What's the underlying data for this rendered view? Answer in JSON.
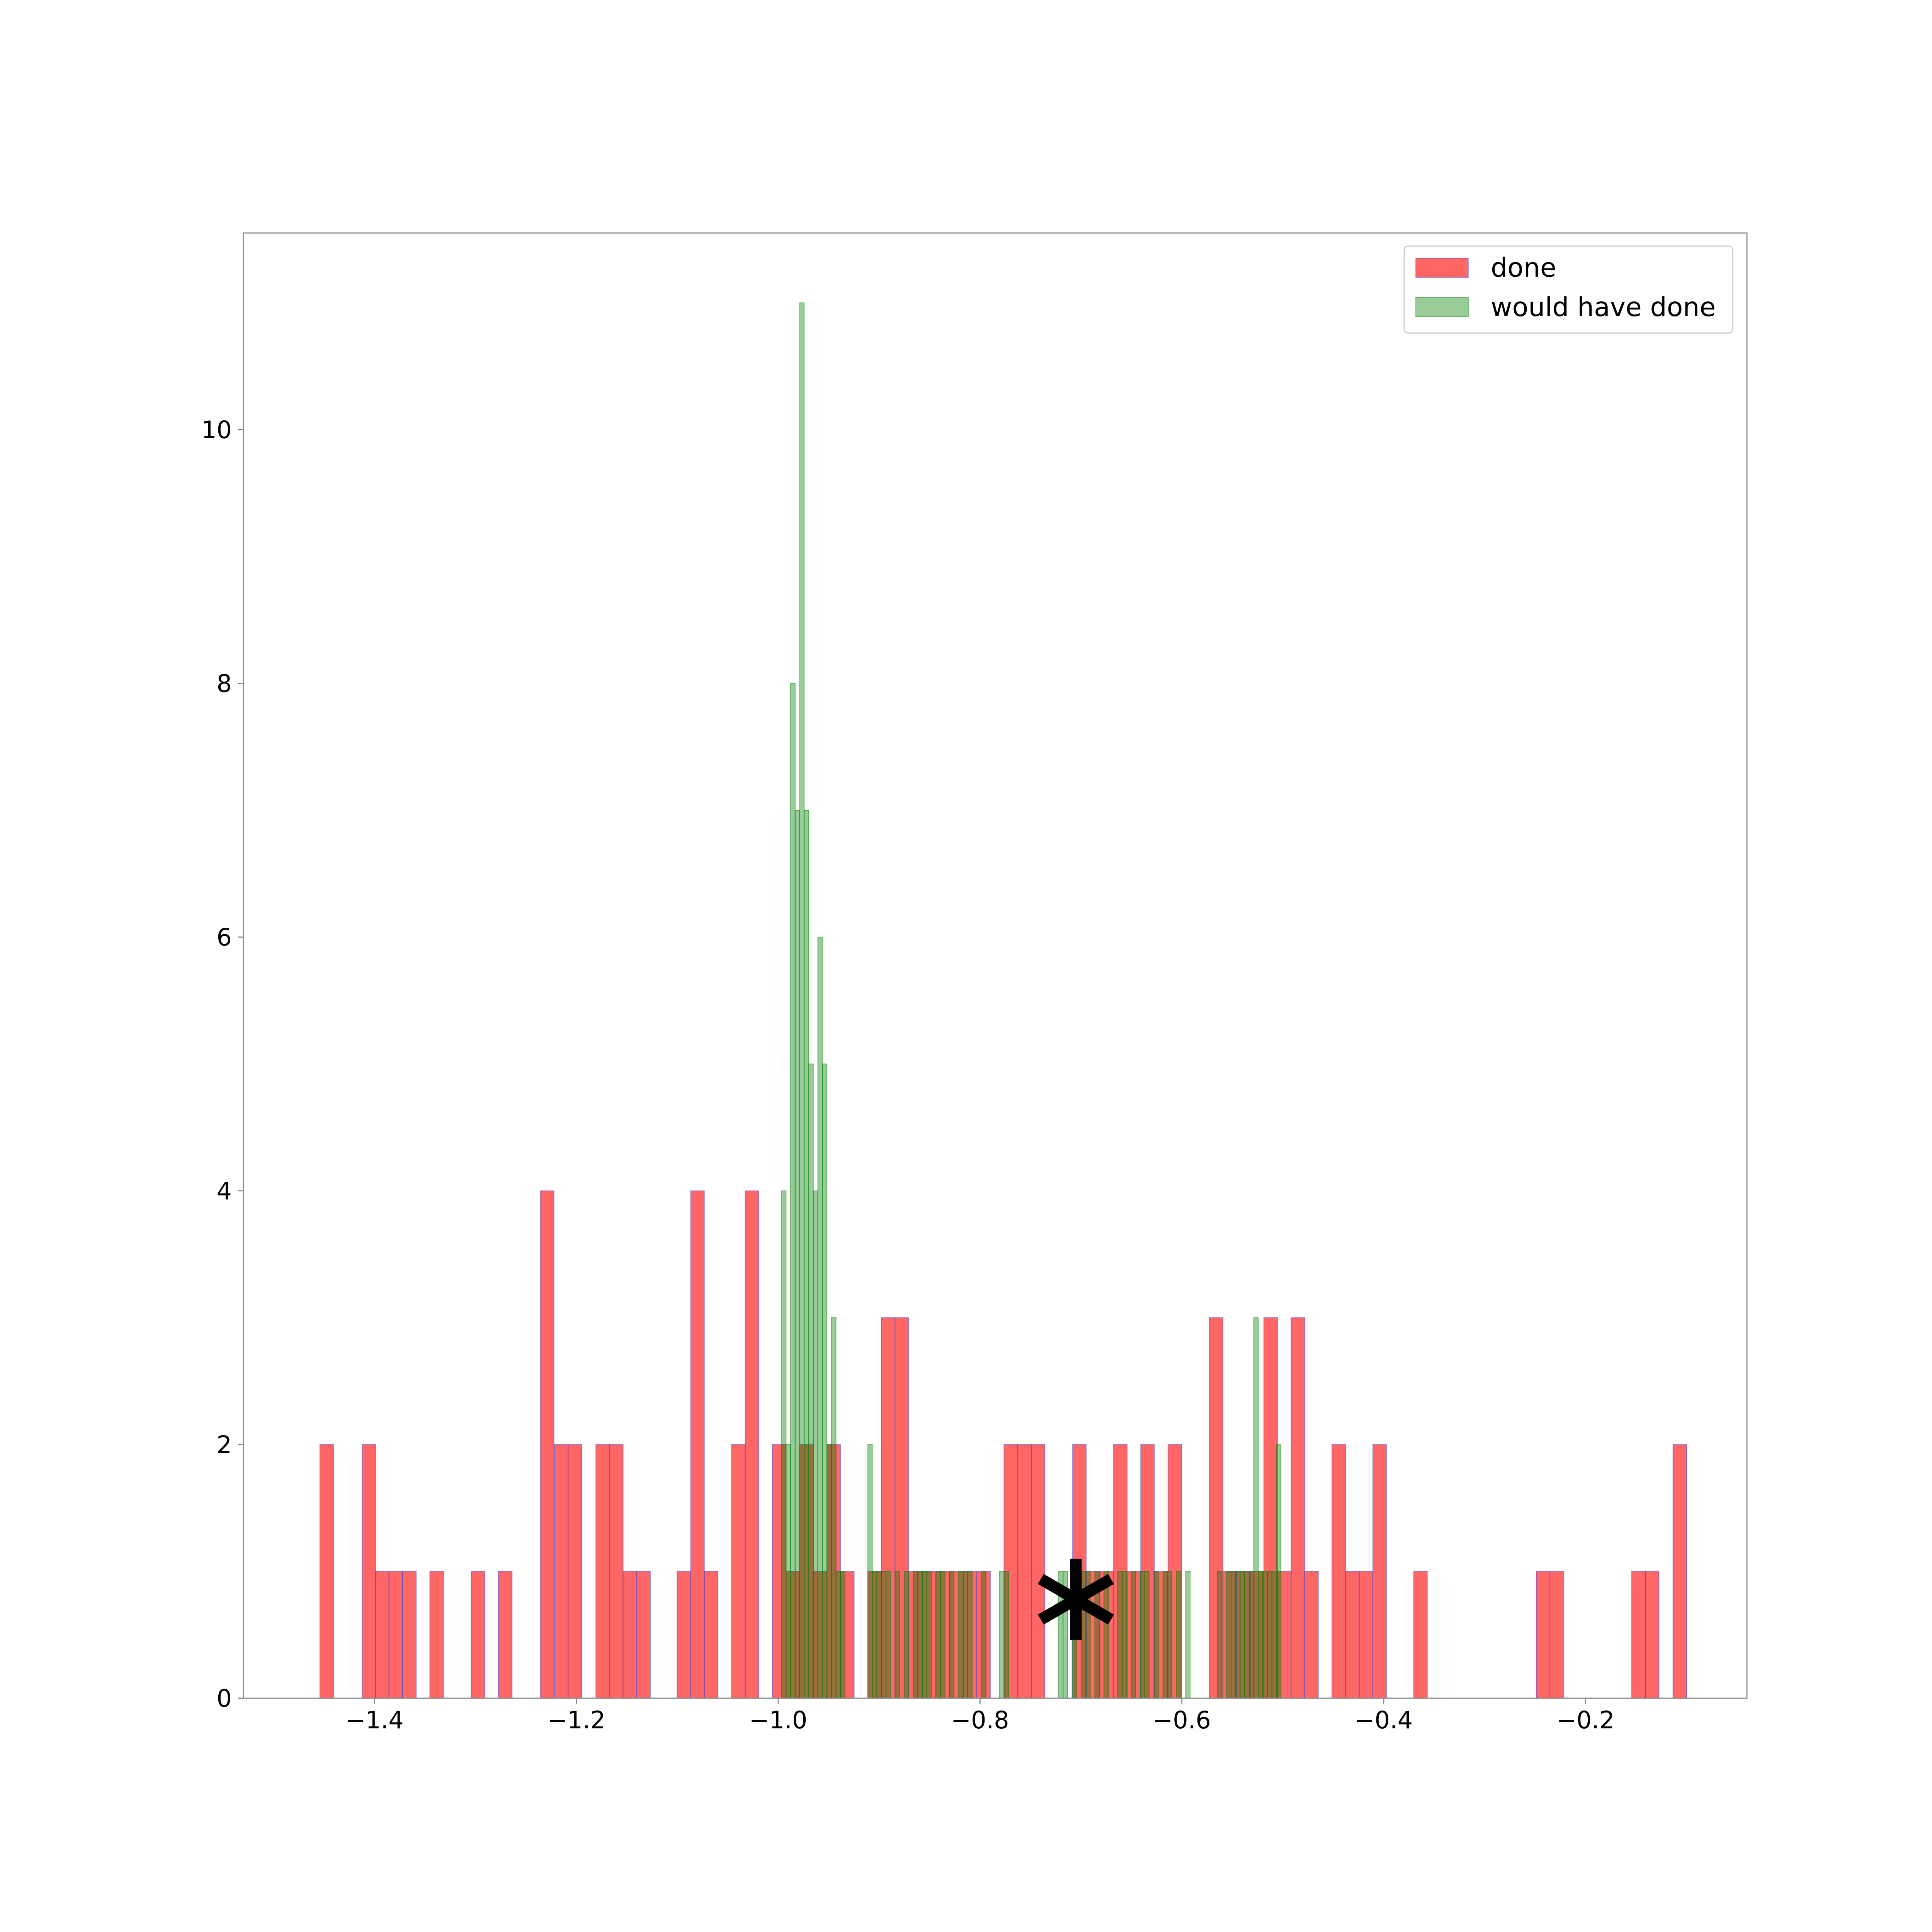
{
  "chart_data": {
    "type": "bar",
    "title": "",
    "xlabel": "",
    "ylabel": "",
    "xlim": [
      -1.53,
      -0.04
    ],
    "ylim": [
      0,
      11.55
    ],
    "x_ticks": [
      -1.4,
      -1.2,
      -1.0,
      -0.8,
      -0.6,
      -0.4,
      -0.2
    ],
    "x_tick_labels": [
      "−1.4",
      "−1.2",
      "−1.0",
      "−0.8",
      "−0.6",
      "−0.4",
      "−0.2"
    ],
    "y_ticks": [
      0,
      2,
      4,
      6,
      8,
      10
    ],
    "y_tick_labels": [
      "0",
      "2",
      "4",
      "6",
      "8",
      "10"
    ],
    "grid": false,
    "legend_position": "top-right",
    "bin_width": 0.0135,
    "series": [
      {
        "name": "done",
        "color": "#ff0000",
        "opacity": 0.6,
        "edge_color": "#4b4bd6",
        "bins": [
          [
            -1.4475,
            2
          ],
          [
            -1.4055,
            2
          ],
          [
            -1.3925,
            1
          ],
          [
            -1.379,
            1
          ],
          [
            -1.3655,
            1
          ],
          [
            -1.3385,
            1
          ],
          [
            -1.2975,
            1
          ],
          [
            -1.2705,
            1
          ],
          [
            -1.229,
            4
          ],
          [
            -1.215,
            2
          ],
          [
            -1.2015,
            2
          ],
          [
            -1.174,
            2
          ],
          [
            -1.1605,
            2
          ],
          [
            -1.147,
            1
          ],
          [
            -1.1335,
            1
          ],
          [
            -1.0935,
            1
          ],
          [
            -1.08,
            4
          ],
          [
            -1.0665,
            1
          ],
          [
            -1.0395,
            2
          ],
          [
            -1.026,
            4
          ],
          [
            -0.999,
            2
          ],
          [
            -0.9855,
            1
          ],
          [
            -0.972,
            2
          ],
          [
            -0.9585,
            1
          ],
          [
            -0.945,
            2
          ],
          [
            -0.9315,
            1
          ],
          [
            -0.9045,
            1
          ],
          [
            -0.891,
            3
          ],
          [
            -0.8775,
            3
          ],
          [
            -0.864,
            1
          ],
          [
            -0.8505,
            1
          ],
          [
            -0.837,
            1
          ],
          [
            -0.8235,
            1
          ],
          [
            -0.81,
            1
          ],
          [
            -0.7965,
            1
          ],
          [
            -0.7695,
            2
          ],
          [
            -0.756,
            2
          ],
          [
            -0.7425,
            2
          ],
          [
            -0.7015,
            2
          ],
          [
            -0.688,
            1
          ],
          [
            -0.6745,
            1
          ],
          [
            -0.661,
            2
          ],
          [
            -0.6475,
            1
          ],
          [
            -0.634,
            2
          ],
          [
            -0.6205,
            1
          ],
          [
            -0.607,
            2
          ],
          [
            -0.566,
            3
          ],
          [
            -0.5525,
            1
          ],
          [
            -0.539,
            1
          ],
          [
            -0.5255,
            1
          ],
          [
            -0.512,
            3
          ],
          [
            -0.4985,
            1
          ],
          [
            -0.485,
            3
          ],
          [
            -0.4715,
            1
          ],
          [
            -0.4445,
            2
          ],
          [
            -0.431,
            1
          ],
          [
            -0.4175,
            1
          ],
          [
            -0.404,
            2
          ],
          [
            -0.3635,
            1
          ],
          [
            -0.242,
            1
          ],
          [
            -0.2285,
            1
          ],
          [
            -0.1475,
            1
          ],
          [
            -0.134,
            1
          ],
          [
            -0.1065,
            2
          ]
        ]
      },
      {
        "name": "would have done",
        "color": "#008000",
        "opacity": 0.4,
        "edge_color": "#008000",
        "bar_width": 0.0045,
        "bins": [
          [
            -0.9945,
            4
          ],
          [
            -0.99,
            2
          ],
          [
            -0.9855,
            8
          ],
          [
            -0.981,
            7
          ],
          [
            -0.9765,
            11
          ],
          [
            -0.972,
            7
          ],
          [
            -0.9675,
            5
          ],
          [
            -0.963,
            4
          ],
          [
            -0.9585,
            6
          ],
          [
            -0.954,
            5
          ],
          [
            -0.9495,
            2
          ],
          [
            -0.945,
            3
          ],
          [
            -0.9405,
            1
          ],
          [
            -0.936,
            1
          ],
          [
            -0.909,
            2
          ],
          [
            -0.9045,
            1
          ],
          [
            -0.9,
            1
          ],
          [
            -0.8955,
            1
          ],
          [
            -0.891,
            1
          ],
          [
            -0.882,
            1
          ],
          [
            -0.873,
            1
          ],
          [
            -0.864,
            1
          ],
          [
            -0.8595,
            1
          ],
          [
            -0.855,
            1
          ],
          [
            -0.8505,
            1
          ],
          [
            -0.8415,
            1
          ],
          [
            -0.837,
            1
          ],
          [
            -0.828,
            1
          ],
          [
            -0.819,
            1
          ],
          [
            -0.8145,
            1
          ],
          [
            -0.81,
            1
          ],
          [
            -0.7965,
            1
          ],
          [
            -0.7785,
            1
          ],
          [
            -0.774,
            1
          ],
          [
            -0.72,
            1
          ],
          [
            -0.7155,
            1
          ],
          [
            -0.7065,
            1
          ],
          [
            -0.6975,
            1
          ],
          [
            -0.693,
            1
          ],
          [
            -0.684,
            1
          ],
          [
            -0.675,
            1
          ],
          [
            -0.6615,
            1
          ],
          [
            -0.657,
            1
          ],
          [
            -0.648,
            1
          ],
          [
            -0.639,
            1
          ],
          [
            -0.6345,
            1
          ],
          [
            -0.6255,
            1
          ],
          [
            -0.6165,
            1
          ],
          [
            -0.612,
            1
          ],
          [
            -0.603,
            1
          ],
          [
            -0.594,
            1
          ],
          [
            -0.5625,
            1
          ],
          [
            -0.5535,
            1
          ],
          [
            -0.549,
            1
          ],
          [
            -0.5445,
            1
          ],
          [
            -0.54,
            1
          ],
          [
            -0.5355,
            1
          ],
          [
            -0.531,
            1
          ],
          [
            -0.5265,
            3
          ],
          [
            -0.522,
            1
          ],
          [
            -0.5175,
            1
          ],
          [
            -0.513,
            1
          ],
          [
            -0.5085,
            1
          ],
          [
            -0.504,
            2
          ]
        ]
      }
    ],
    "marker": {
      "symbol": "*",
      "x": -0.705,
      "y": 0.78,
      "color": "#000000"
    }
  }
}
